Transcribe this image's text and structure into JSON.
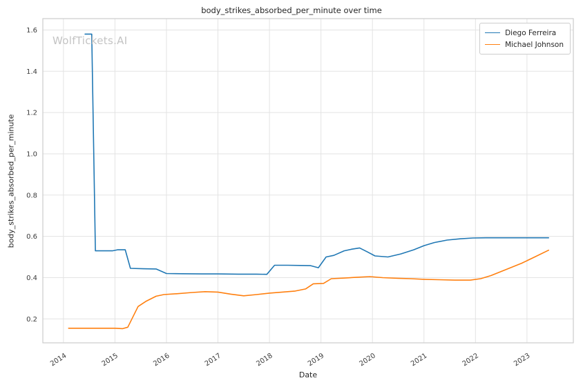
{
  "watermark": "WolfTickets.AI",
  "chart_data": {
    "type": "line",
    "title": "body_strikes_absorbed_per_minute over time",
    "xlabel": "Date",
    "ylabel": "body_strikes_absorbed_per_minute",
    "xlim": [
      2013.6,
      2023.9
    ],
    "ylim": [
      0.084,
      1.655
    ],
    "x_ticks": [
      2014,
      2015,
      2016,
      2017,
      2018,
      2019,
      2020,
      2021,
      2022,
      2023
    ],
    "y_ticks": [
      0.2,
      0.4,
      0.6,
      0.8,
      1.0,
      1.2,
      1.4,
      1.6
    ],
    "grid": true,
    "grid_color": "#e3e3e3",
    "spine_color": "#cccccc",
    "tick_label_color": "#3b3b3b",
    "legend_position": "upper right",
    "series": [
      {
        "name": "Diego Ferreira",
        "color": "#1f77b4",
        "x": [
          2014.42,
          2014.55,
          2014.62,
          2014.95,
          2015.05,
          2015.2,
          2015.3,
          2015.55,
          2015.8,
          2016.0,
          2016.3,
          2016.7,
          2017.0,
          2017.4,
          2017.75,
          2017.95,
          2018.1,
          2018.35,
          2018.6,
          2018.8,
          2018.95,
          2019.1,
          2019.25,
          2019.45,
          2019.6,
          2019.75,
          2019.9,
          2020.05,
          2020.3,
          2020.55,
          2020.8,
          2021.0,
          2021.2,
          2021.45,
          2021.7,
          2021.95,
          2022.2,
          2022.5,
          2022.8,
          2023.1,
          2023.42
        ],
        "y": [
          1.58,
          1.58,
          0.53,
          0.53,
          0.535,
          0.535,
          0.445,
          0.443,
          0.442,
          0.42,
          0.419,
          0.418,
          0.418,
          0.417,
          0.417,
          0.416,
          0.46,
          0.46,
          0.459,
          0.458,
          0.448,
          0.5,
          0.508,
          0.53,
          0.538,
          0.544,
          0.525,
          0.505,
          0.5,
          0.515,
          0.535,
          0.555,
          0.57,
          0.582,
          0.588,
          0.592,
          0.593,
          0.593,
          0.593,
          0.593,
          0.593
        ]
      },
      {
        "name": "Michael Johnson",
        "color": "#ff7f0e",
        "x": [
          2014.1,
          2014.4,
          2014.7,
          2015.0,
          2015.15,
          2015.25,
          2015.45,
          2015.6,
          2015.8,
          2015.95,
          2016.2,
          2016.5,
          2016.75,
          2017.0,
          2017.25,
          2017.5,
          2017.75,
          2018.0,
          2018.25,
          2018.5,
          2018.7,
          2018.85,
          2019.05,
          2019.2,
          2019.45,
          2019.7,
          2019.95,
          2020.2,
          2020.5,
          2020.75,
          2021.0,
          2021.3,
          2021.6,
          2021.9,
          2022.1,
          2022.3,
          2022.6,
          2022.9,
          2023.15,
          2023.42
        ],
        "y": [
          0.155,
          0.155,
          0.155,
          0.155,
          0.153,
          0.16,
          0.26,
          0.285,
          0.31,
          0.318,
          0.322,
          0.328,
          0.332,
          0.33,
          0.32,
          0.312,
          0.318,
          0.325,
          0.33,
          0.335,
          0.345,
          0.37,
          0.372,
          0.395,
          0.398,
          0.402,
          0.405,
          0.4,
          0.397,
          0.395,
          0.392,
          0.39,
          0.388,
          0.388,
          0.395,
          0.41,
          0.44,
          0.47,
          0.5,
          0.533
        ]
      }
    ]
  }
}
